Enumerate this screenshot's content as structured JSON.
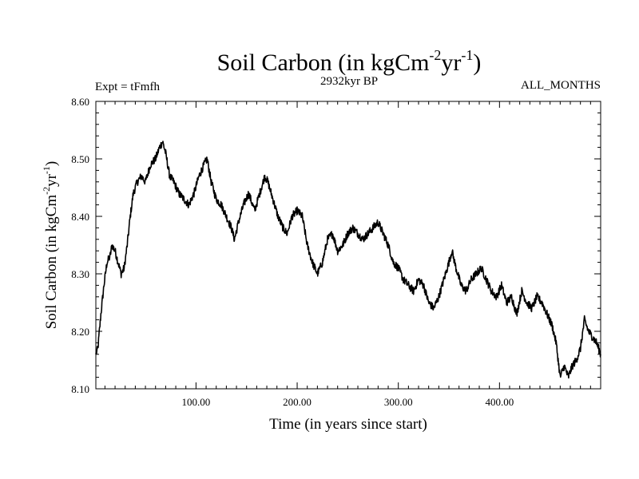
{
  "chart_data": {
    "type": "line",
    "title": {
      "main": "Soil Carbon (in kgCm",
      "sup1": "-2",
      "mid": "yr",
      "sup2": "-1",
      "end": ")"
    },
    "subtitle_left": "Expt = tFmfh",
    "subtitle_center": "2932kyr BP",
    "subtitle_right": "ALL_MONTHS",
    "xlabel": "Time (in years since start)",
    "ylabel": {
      "main": "Soil Carbon (in kgCm",
      "sup1": "-2",
      "mid": "yr",
      "sup2": "-1",
      "end": ")"
    },
    "xlim": [
      1,
      500
    ],
    "ylim": [
      8.1,
      8.6
    ],
    "x_ticks": [
      100,
      200,
      300,
      400
    ],
    "x_tick_labels": [
      "100.00",
      "200.00",
      "300.00",
      "400.00"
    ],
    "y_ticks": [
      8.1,
      8.2,
      8.3,
      8.4,
      8.5,
      8.6
    ],
    "y_tick_labels": [
      "8.10",
      "8.20",
      "8.30",
      "8.40",
      "8.50",
      "8.60"
    ],
    "grid": false,
    "series": [
      {
        "name": "Soil Carbon",
        "x": [
          1,
          3,
          6,
          9,
          12,
          15,
          17,
          20,
          23,
          26,
          29,
          32,
          35,
          38,
          42,
          46,
          50,
          55,
          60,
          64,
          67,
          70,
          74,
          78,
          83,
          88,
          93,
          98,
          103,
          108,
          111,
          115,
          120,
          125,
          130,
          135,
          138,
          142,
          147,
          152,
          158,
          163,
          168,
          171,
          176,
          181,
          186,
          190,
          195,
          200,
          205,
          210,
          215,
          220,
          225,
          230,
          235,
          240,
          245,
          250,
          255,
          260,
          265,
          270,
          275,
          280,
          285,
          290,
          295,
          300,
          305,
          310,
          315,
          320,
          325,
          330,
          335,
          340,
          345,
          350,
          353,
          357,
          362,
          367,
          372,
          377,
          382,
          387,
          392,
          397,
          402,
          407,
          412,
          417,
          422,
          427,
          432,
          437,
          442,
          447,
          452,
          456,
          460,
          464,
          468,
          472,
          476,
          480,
          484,
          488,
          492,
          496,
          500
        ],
        "values": [
          8.16,
          8.17,
          8.23,
          8.28,
          8.32,
          8.33,
          8.35,
          8.34,
          8.32,
          8.3,
          8.31,
          8.35,
          8.4,
          8.44,
          8.46,
          8.47,
          8.46,
          8.49,
          8.5,
          8.52,
          8.53,
          8.51,
          8.47,
          8.46,
          8.44,
          8.43,
          8.42,
          8.44,
          8.47,
          8.49,
          8.5,
          8.46,
          8.43,
          8.42,
          8.4,
          8.38,
          8.36,
          8.39,
          8.42,
          8.44,
          8.41,
          8.44,
          8.47,
          8.46,
          8.43,
          8.4,
          8.38,
          8.37,
          8.4,
          8.41,
          8.4,
          8.35,
          8.32,
          8.3,
          8.32,
          8.36,
          8.37,
          8.34,
          8.35,
          8.37,
          8.38,
          8.37,
          8.36,
          8.37,
          8.38,
          8.39,
          8.37,
          8.35,
          8.32,
          8.31,
          8.29,
          8.28,
          8.27,
          8.29,
          8.28,
          8.25,
          8.24,
          8.26,
          8.29,
          8.32,
          8.34,
          8.31,
          8.28,
          8.27,
          8.29,
          8.3,
          8.31,
          8.29,
          8.27,
          8.26,
          8.28,
          8.25,
          8.26,
          8.23,
          8.27,
          8.25,
          8.24,
          8.26,
          8.25,
          8.23,
          8.21,
          8.18,
          8.12,
          8.14,
          8.12,
          8.14,
          8.15,
          8.17,
          8.22,
          8.2,
          8.19,
          8.18,
          8.16
        ]
      }
    ]
  }
}
